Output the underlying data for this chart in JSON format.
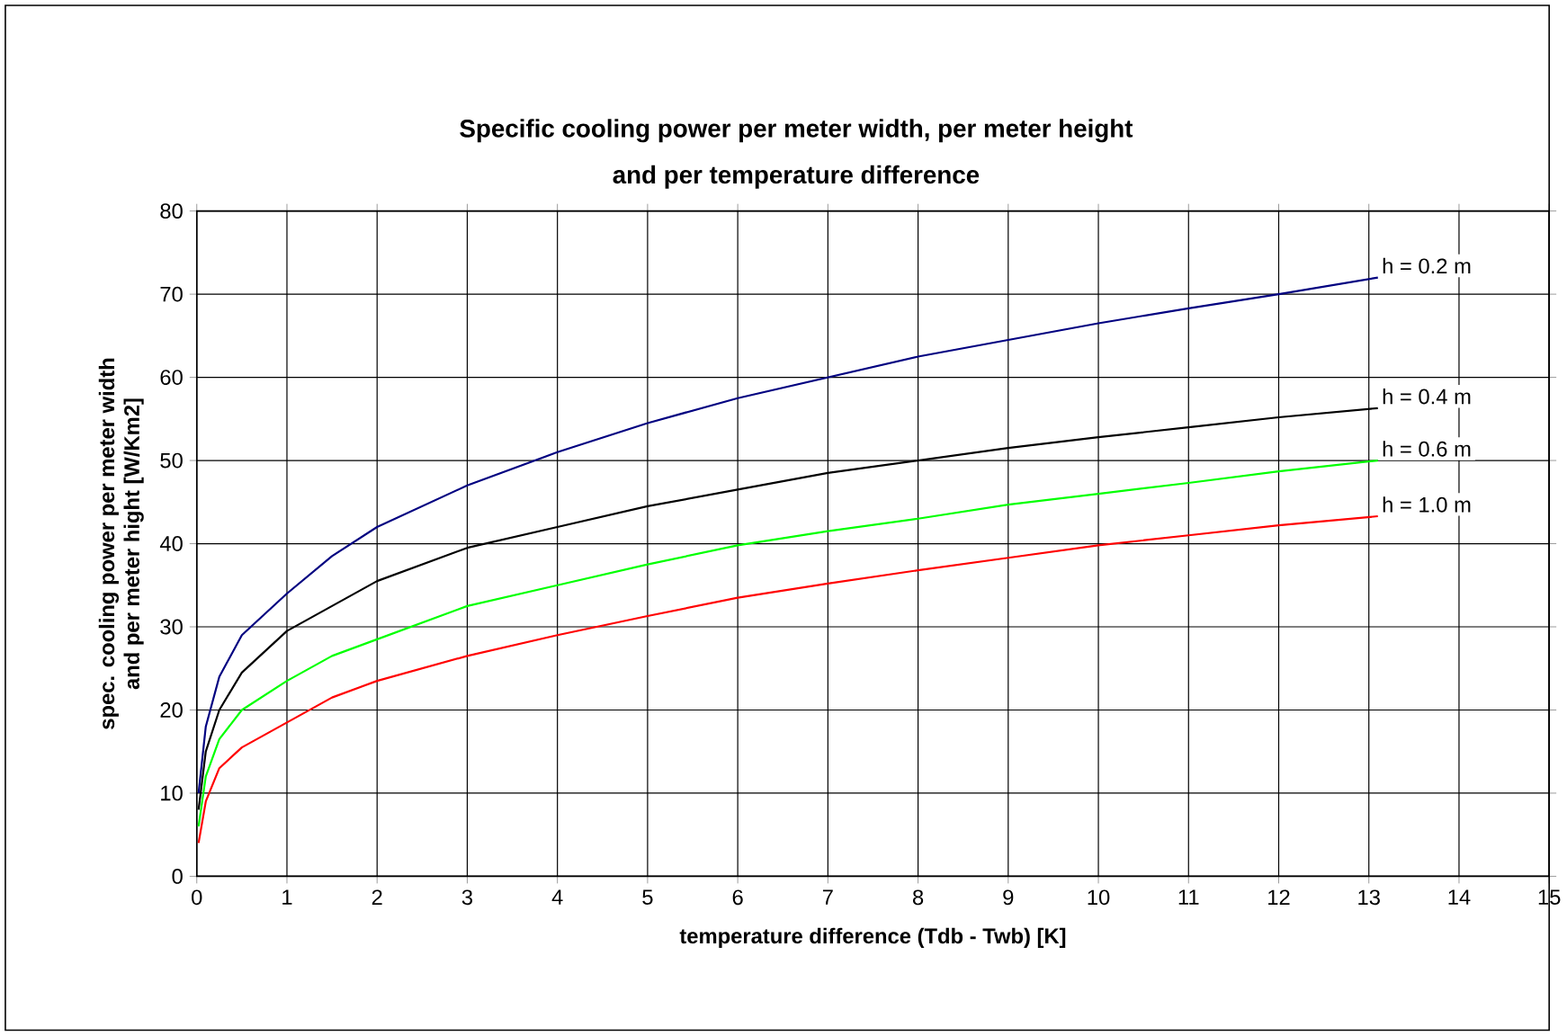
{
  "chart_data": {
    "type": "line",
    "title": "Specific cooling power per meter width, per meter height\nand per temperature difference",
    "xlabel": "temperature difference (Tdb - Twb) [K]",
    "ylabel": "spec. cooling power per meter width\nand per meter hight [W/Km2]",
    "x": [
      0.02,
      0.1,
      0.25,
      0.5,
      1,
      1.5,
      2,
      3,
      4,
      5,
      6,
      7,
      8,
      9,
      10,
      11,
      12,
      13.1
    ],
    "series": [
      {
        "name": "h = 0.2 m",
        "color": "#000080",
        "values": [
          10,
          18,
          24,
          29,
          34,
          38.5,
          42,
          47,
          51,
          54.5,
          57.5,
          60,
          62.5,
          64.5,
          66.5,
          68.3,
          70,
          72
        ]
      },
      {
        "name": "h = 0.4 m",
        "color": "#000000",
        "values": [
          8,
          15,
          20,
          24.5,
          29.5,
          32.5,
          35.5,
          39.5,
          42,
          44.5,
          46.5,
          48.5,
          50,
          51.5,
          52.8,
          54,
          55.2,
          56.3
        ]
      },
      {
        "name": "h = 0.6 m",
        "color": "#00ff00",
        "values": [
          6,
          12,
          16.5,
          20,
          23.5,
          26.5,
          28.5,
          32.5,
          35,
          37.5,
          39.8,
          41.5,
          43,
          44.7,
          46,
          47.3,
          48.7,
          50
        ]
      },
      {
        "name": "h = 1.0 m",
        "color": "#ff0000",
        "values": [
          4,
          9,
          13,
          15.5,
          18.5,
          21.5,
          23.5,
          26.5,
          29,
          31.3,
          33.5,
          35.2,
          36.8,
          38.3,
          39.8,
          41,
          42.2,
          43.3
        ]
      }
    ],
    "xlim": [
      0,
      15
    ],
    "ylim": [
      0,
      80
    ],
    "xticks": [
      0,
      1,
      2,
      3,
      4,
      5,
      6,
      7,
      8,
      9,
      10,
      11,
      12,
      13,
      14,
      15
    ],
    "yticks": [
      0,
      10,
      20,
      30,
      40,
      50,
      60,
      70,
      80
    ],
    "grid": true,
    "legend": false,
    "marker": "none",
    "line_style": "solid"
  }
}
